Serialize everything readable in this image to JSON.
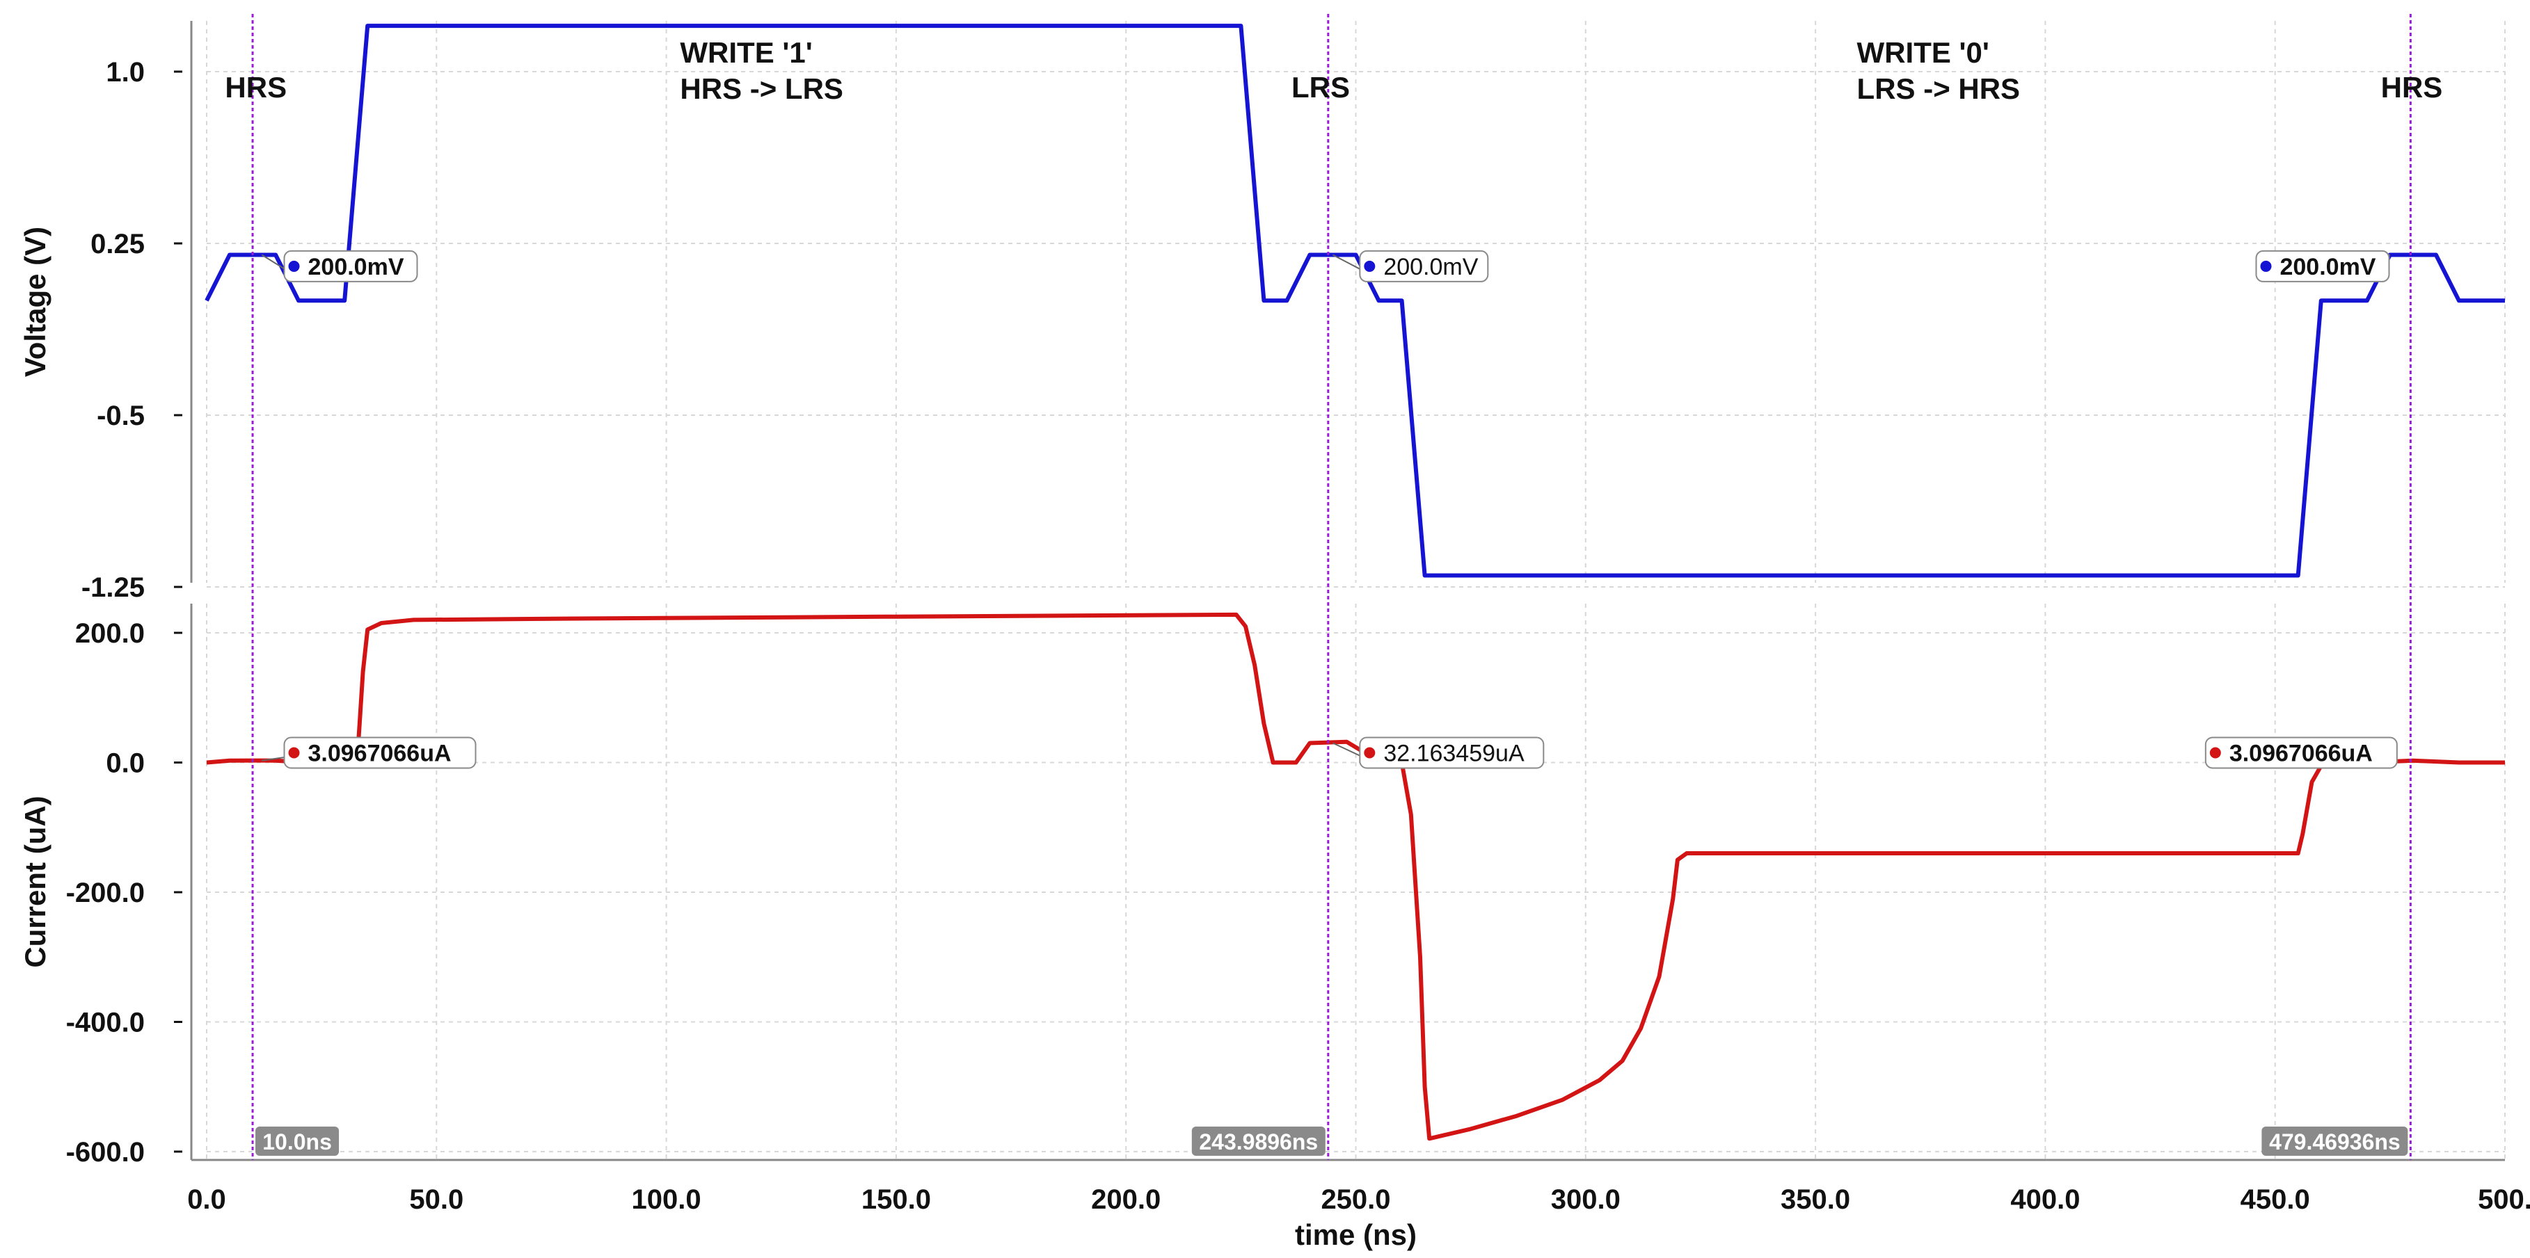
{
  "chart_data": {
    "type": "line",
    "x_axis": {
      "label": "time (ns)",
      "range": [
        0,
        500
      ],
      "ticks": [
        0,
        50,
        100,
        150,
        200,
        250,
        300,
        350,
        400,
        450,
        500
      ],
      "tick_labels": [
        "0.0",
        "50.0",
        "100.0",
        "150.0",
        "200.0",
        "250.0",
        "300.0",
        "350.0",
        "400.0",
        "450.0",
        "500."
      ]
    },
    "grid": true,
    "panels": [
      {
        "id": "voltage",
        "ylabel": "Voltage  (V)",
        "ylim": [
          -1.25,
          1.25
        ],
        "yticks": [
          1.0,
          0.25,
          -0.5,
          -1.25
        ],
        "ytick_labels": [
          "1.0",
          "0.25",
          "-0.5",
          "-1.25"
        ],
        "series": [
          {
            "color": "#1414d2",
            "points": [
              [
                0,
                0
              ],
              [
                5,
                0.2
              ],
              [
                9,
                0.2
              ],
              [
                15,
                0.2
              ],
              [
                20,
                0
              ],
              [
                30,
                0
              ],
              [
                35,
                1.2
              ],
              [
                225,
                1.2
              ],
              [
                230,
                0
              ],
              [
                235,
                0
              ],
              [
                240,
                0.2
              ],
              [
                250,
                0.2
              ],
              [
                255,
                0
              ],
              [
                260,
                0
              ],
              [
                265,
                -1.2
              ],
              [
                455,
                -1.2
              ],
              [
                460,
                0
              ],
              [
                470,
                0
              ],
              [
                475,
                0.2
              ],
              [
                485,
                0.2
              ],
              [
                490,
                0
              ],
              [
                500,
                0
              ]
            ]
          }
        ],
        "markers": [
          {
            "x": 19,
            "y": 0.15,
            "label": "200.0mV",
            "bold": true,
            "side": "right",
            "ref_x": 12,
            "ref_y": 0.2
          },
          {
            "x": 253,
            "y": 0.15,
            "label": "200.0mV",
            "bold": false,
            "side": "right",
            "ref_x": 245,
            "ref_y": 0.2
          },
          {
            "x": 448,
            "y": 0.15,
            "label": "200.0mV",
            "bold": true,
            "side": "right",
            "ref_x": 475,
            "ref_y": 0.2
          }
        ]
      },
      {
        "id": "current",
        "ylabel": "Current (uA)",
        "ylim": [
          -600,
          240
        ],
        "yticks": [
          200,
          0,
          -200,
          -400,
          -600
        ],
        "ytick_labels": [
          "200.0",
          "0.0",
          "-200.0",
          "-400.0",
          "-600.0"
        ],
        "series": [
          {
            "color": "#d21414",
            "points": [
              [
                0,
                0
              ],
              [
                5,
                3
              ],
              [
                10,
                3.1
              ],
              [
                15,
                3
              ],
              [
                20,
                1
              ],
              [
                25,
                0
              ],
              [
                30,
                5
              ],
              [
                33,
                30
              ],
              [
                34,
                140
              ],
              [
                35,
                205
              ],
              [
                38,
                215
              ],
              [
                45,
                220
              ],
              [
                80,
                222
              ],
              [
                150,
                225
              ],
              [
                224,
                228
              ],
              [
                226,
                210
              ],
              [
                228,
                150
              ],
              [
                230,
                60
              ],
              [
                232,
                0
              ],
              [
                237,
                0
              ],
              [
                240,
                30
              ],
              [
                248,
                32
              ],
              [
                252,
                15
              ],
              [
                256,
                0
              ],
              [
                260,
                0
              ],
              [
                262,
                -80
              ],
              [
                264,
                -300
              ],
              [
                265,
                -500
              ],
              [
                266,
                -580
              ],
              [
                275,
                -565
              ],
              [
                285,
                -545
              ],
              [
                295,
                -520
              ],
              [
                303,
                -490
              ],
              [
                308,
                -460
              ],
              [
                312,
                -410
              ],
              [
                316,
                -330
              ],
              [
                319,
                -210
              ],
              [
                320,
                -150
              ],
              [
                322,
                -140
              ],
              [
                455,
                -140
              ],
              [
                456,
                -110
              ],
              [
                458,
                -30
              ],
              [
                460,
                -5
              ],
              [
                470,
                0
              ],
              [
                480,
                3
              ],
              [
                490,
                0
              ],
              [
                500,
                0
              ]
            ]
          }
        ],
        "markers": [
          {
            "x": 19,
            "y": 15,
            "label": "3.0967066uA",
            "bold": true,
            "side": "right",
            "ref_x": 12,
            "ref_y": 3
          },
          {
            "x": 253,
            "y": 15,
            "label": "32.163459uA",
            "bold": false,
            "side": "right",
            "ref_x": 245,
            "ref_y": 30
          },
          {
            "x": 437,
            "y": 15,
            "label": "3.0967066uA",
            "bold": true,
            "side": "right",
            "ref_x": 475,
            "ref_y": 3
          }
        ]
      }
    ],
    "cursors": [
      {
        "x": 10,
        "label": "10.0ns"
      },
      {
        "x": 243.9896,
        "label": "243.9896ns"
      },
      {
        "x": 479.46936,
        "label": "479.46936ns"
      }
    ],
    "annotations": [
      {
        "panel": "voltage",
        "x": 4,
        "y": 1.0,
        "lines": [
          "HRS"
        ]
      },
      {
        "panel": "voltage",
        "x": 103,
        "y": 1.0,
        "lines": [
          "WRITE '1'",
          "HRS -> LRS"
        ]
      },
      {
        "panel": "voltage",
        "x": 236,
        "y": 1.0,
        "lines": [
          "LRS"
        ]
      },
      {
        "panel": "voltage",
        "x": 359,
        "y": 1.0,
        "lines": [
          "WRITE '0'",
          "LRS -> HRS"
        ]
      },
      {
        "panel": "voltage",
        "x": 473,
        "y": 1.0,
        "lines": [
          "HRS"
        ]
      }
    ],
    "colors": {
      "voltage_trace": "#1414d2",
      "current_trace": "#d21414",
      "cursor": "#9a1ed8",
      "cursor_label_bg": "#8a8a8a",
      "grid": "#d8d8d8"
    }
  }
}
